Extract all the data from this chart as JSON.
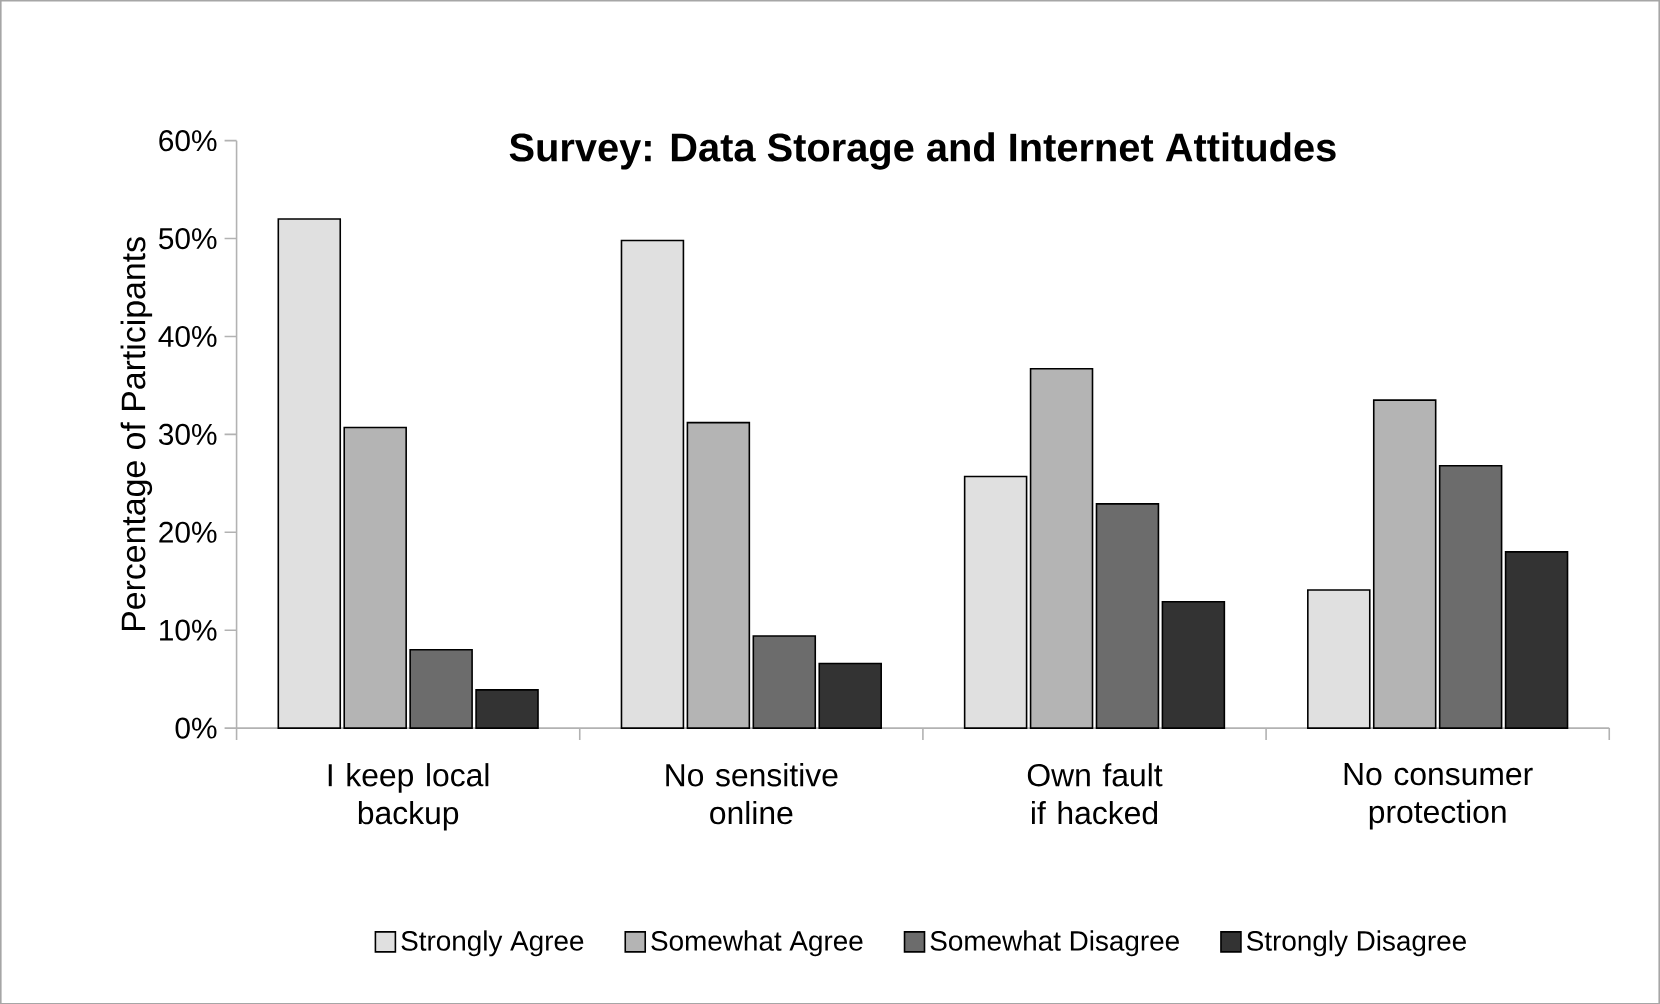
{
  "chart_data": {
    "type": "bar",
    "title": "Survey: Data Storage and Internet Attitudes",
    "ylabel": "Percentage of Participants",
    "categories": [
      "I keep local backup",
      "No sensitive online",
      "Own fault if hacked",
      "No consumer protection"
    ],
    "series": [
      {
        "name": "Strongly Agree",
        "color": "#e0e0e0",
        "values": [
          52.0,
          49.8,
          25.7,
          14.1
        ]
      },
      {
        "name": "Somewhat Agree",
        "color": "#b4b4b4",
        "values": [
          30.7,
          31.2,
          36.7,
          33.5
        ]
      },
      {
        "name": "Somewhat Disagree",
        "color": "#6c6c6c",
        "values": [
          8.0,
          9.4,
          22.9,
          26.8
        ]
      },
      {
        "name": "Strongly Disagree",
        "color": "#333333",
        "values": [
          3.9,
          6.6,
          12.9,
          18.0
        ]
      }
    ],
    "ylim": [
      0,
      60
    ],
    "yticks": [
      {
        "value": 0,
        "label": "0%"
      },
      {
        "value": 10,
        "label": "10%"
      },
      {
        "value": 20,
        "label": "20%"
      },
      {
        "value": 30,
        "label": "30%"
      },
      {
        "value": 40,
        "label": "40%"
      },
      {
        "value": 50,
        "label": "50%"
      },
      {
        "value": 60,
        "label": "60%"
      }
    ],
    "grid": false,
    "legend": "bottom"
  }
}
